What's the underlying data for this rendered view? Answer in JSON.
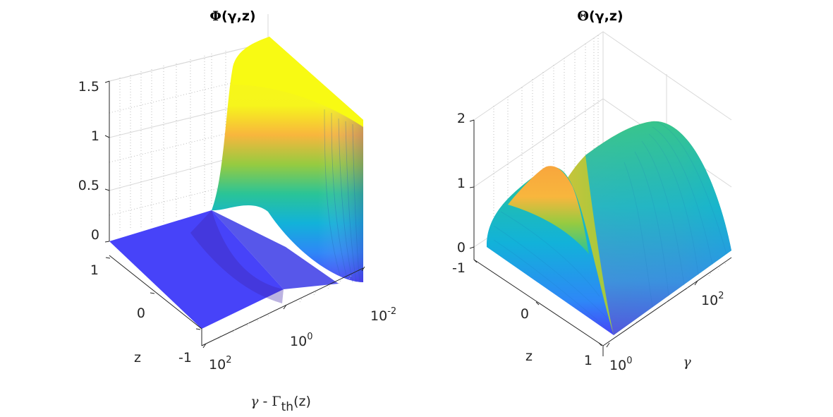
{
  "chart_data": [
    {
      "type": "surface",
      "title_symbol": "Φ",
      "title_args": "(γ,z)",
      "xlabel_symbol": "γ",
      "xlabel_mid": " - ",
      "xlabel_Gamma": "Γ",
      "xlabel_sub": "th",
      "xlabel_tail": "(z)",
      "ylabel": "z",
      "zlabel": "",
      "x_scale": "log",
      "x_range": [
        0.01,
        100
      ],
      "y_range": [
        -1,
        1
      ],
      "z_range": [
        0,
        1.5
      ],
      "x_tick_base": [
        "10",
        "10",
        "10"
      ],
      "x_tick_exp": [
        "-2",
        "0",
        "2"
      ],
      "y_ticks": [
        "1",
        "0",
        "-1"
      ],
      "z_ticks": [
        "0",
        "0.5",
        "1",
        "1.5"
      ],
      "colormap": [
        "#3e26a8",
        "#4743f9",
        "#2e87f7",
        "#12b2d9",
        "#2ac497",
        "#96cb40",
        "#f8b63d",
        "#f8fa13"
      ],
      "grid": true,
      "description_values": {
        "plateau_level": 1.5,
        "flat_level": 0,
        "peak_near": "x = 1e-2 side, z ≈ 1"
      }
    },
    {
      "type": "surface",
      "title_symbol": "Θ",
      "title_args": "(γ,z)",
      "xlabel": "γ",
      "ylabel": "z",
      "x_scale": "log",
      "x_range": [
        1,
        100
      ],
      "y_range": [
        -1,
        1
      ],
      "z_range": [
        0,
        2
      ],
      "x_tick_base": [
        "10",
        "10"
      ],
      "x_tick_exp": [
        "0",
        "2"
      ],
      "y_ticks": [
        "-1",
        "0",
        "1"
      ],
      "z_ticks": [
        "0",
        "1",
        "2"
      ],
      "colormap": [
        "#3e26a8",
        "#4743f9",
        "#2e87f7",
        "#12b2d9",
        "#2ac497",
        "#96cb40",
        "#f8b63d",
        "#f8fa13"
      ],
      "grid": true,
      "description_values": {
        "ridge_max_left": 1.5,
        "ridge_max_right": 2
      }
    }
  ]
}
